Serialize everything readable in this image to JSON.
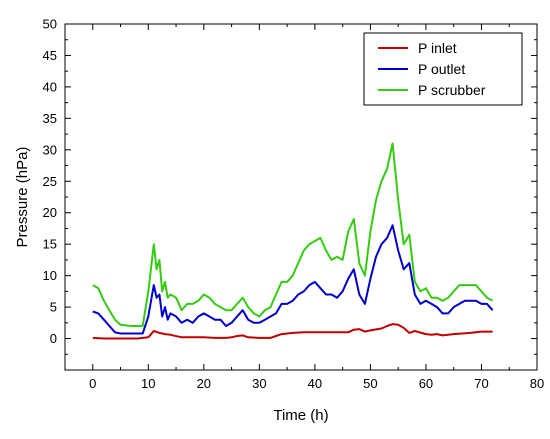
{
  "chart_data": {
    "type": "line",
    "xlabel": "Time (h)",
    "ylabel": "Pressure (hPa)",
    "xlim": [
      -5,
      80
    ],
    "ylim": [
      -5,
      50
    ],
    "xticks": [
      0,
      10,
      20,
      30,
      40,
      50,
      60,
      70,
      80
    ],
    "yticks": [
      0,
      5,
      10,
      15,
      20,
      25,
      30,
      35,
      40,
      45,
      50
    ],
    "xtick_labels": [
      "0",
      "10",
      "20",
      "30",
      "40",
      "50",
      "60",
      "70",
      "80"
    ],
    "ytick_labels": [
      "0",
      "5",
      "10",
      "15",
      "20",
      "25",
      "30",
      "35",
      "40",
      "45",
      "50"
    ],
    "grid": false,
    "legend_position": "top-right",
    "series": [
      {
        "name": "P inlet",
        "color": "#c00000",
        "x": [
          0,
          2,
          5,
          8,
          10,
          11,
          12,
          13,
          14,
          16,
          18,
          20,
          22,
          24,
          25,
          26,
          27,
          28,
          30,
          32,
          33,
          34,
          35,
          36,
          38,
          40,
          42,
          44,
          46,
          47,
          48,
          49,
          50,
          52,
          53,
          54,
          55,
          56,
          57,
          58,
          60,
          61,
          62,
          63,
          65,
          68,
          70,
          72
        ],
        "y": [
          0.1,
          0,
          0,
          0,
          0.2,
          1.2,
          0.9,
          0.7,
          0.6,
          0.2,
          0.2,
          0.2,
          0.1,
          0.1,
          0.2,
          0.4,
          0.5,
          0.2,
          0.1,
          0.1,
          0.4,
          0.7,
          0.8,
          0.9,
          1.0,
          1.0,
          1.0,
          1.0,
          1.0,
          1.4,
          1.5,
          1.1,
          1.3,
          1.6,
          2.0,
          2.3,
          2.2,
          1.7,
          0.9,
          1.2,
          0.7,
          0.6,
          0.7,
          0.5,
          0.7,
          0.9,
          1.1,
          1.1
        ]
      },
      {
        "name": "P outlet",
        "color": "#0000cc",
        "x": [
          0,
          1,
          2,
          3,
          4,
          5,
          7,
          9,
          10,
          11,
          11.5,
          12,
          12.5,
          13,
          13.5,
          14,
          15,
          16,
          17,
          18,
          19,
          20,
          21,
          22,
          23,
          24,
          25,
          26,
          27,
          28,
          29,
          30,
          31,
          32,
          33,
          34,
          35,
          36,
          37,
          38,
          39,
          40,
          41,
          42,
          43,
          44,
          45,
          46,
          47,
          48,
          49,
          50,
          51,
          52,
          53,
          54,
          55,
          56,
          57,
          58,
          59,
          60,
          61,
          62,
          63,
          64,
          65,
          66,
          67,
          68,
          69,
          70,
          71,
          72
        ],
        "y": [
          4.3,
          4.0,
          3.0,
          2.0,
          1.0,
          0.8,
          0.8,
          0.8,
          3.5,
          8.5,
          6.5,
          7.0,
          3.5,
          5.0,
          3.0,
          4.0,
          3.5,
          2.5,
          3.0,
          2.5,
          3.5,
          4.0,
          3.5,
          3.0,
          3.0,
          2.0,
          2.5,
          3.5,
          4.5,
          3.0,
          2.5,
          2.5,
          3.0,
          3.5,
          4.0,
          5.5,
          5.5,
          6.0,
          7.0,
          7.5,
          8.5,
          9.0,
          8.0,
          7.0,
          7.0,
          6.5,
          7.5,
          9.5,
          11.0,
          7.0,
          5.5,
          9.5,
          13.0,
          15.0,
          16.0,
          18.0,
          14.0,
          11.0,
          12.0,
          7.0,
          5.5,
          6.0,
          5.5,
          5.0,
          4.0,
          4.0,
          5.0,
          5.5,
          6.0,
          6.0,
          6.0,
          5.5,
          5.5,
          4.5
        ]
      },
      {
        "name": "P scrubber",
        "color": "#33cc11",
        "x": [
          0,
          1,
          2,
          3,
          4,
          5,
          7,
          9,
          10,
          11,
          11.5,
          12,
          12.5,
          13,
          13.5,
          14,
          15,
          16,
          17,
          18,
          19,
          20,
          21,
          22,
          23,
          24,
          25,
          26,
          27,
          28,
          29,
          30,
          31,
          32,
          33,
          34,
          35,
          36,
          37,
          38,
          39,
          40,
          41,
          42,
          43,
          44,
          45,
          46,
          47,
          48,
          49,
          50,
          51,
          52,
          53,
          54,
          55,
          56,
          57,
          58,
          59,
          60,
          61,
          62,
          63,
          64,
          65,
          66,
          67,
          68,
          69,
          70,
          71,
          72
        ],
        "y": [
          8.5,
          8.0,
          6.0,
          4.5,
          3.0,
          2.2,
          2.0,
          2.0,
          7.5,
          15.0,
          11.0,
          12.5,
          7.5,
          9.0,
          6.5,
          7.0,
          6.5,
          4.5,
          5.5,
          5.5,
          6.0,
          7.0,
          6.5,
          5.5,
          5.0,
          4.5,
          4.5,
          5.5,
          6.5,
          5.0,
          4.0,
          3.5,
          4.5,
          5.0,
          7.0,
          9.0,
          9.0,
          10.0,
          12.0,
          14.0,
          15.0,
          15.5,
          16.0,
          14.0,
          12.5,
          13.0,
          12.5,
          17.0,
          19.0,
          12.0,
          10.0,
          17.0,
          22.0,
          25.0,
          27.0,
          31.0,
          22.0,
          15.0,
          16.5,
          9.0,
          7.5,
          8.0,
          6.5,
          6.5,
          6.0,
          6.5,
          7.5,
          8.5,
          8.5,
          8.5,
          8.5,
          7.5,
          6.5,
          6.0
        ]
      }
    ]
  }
}
